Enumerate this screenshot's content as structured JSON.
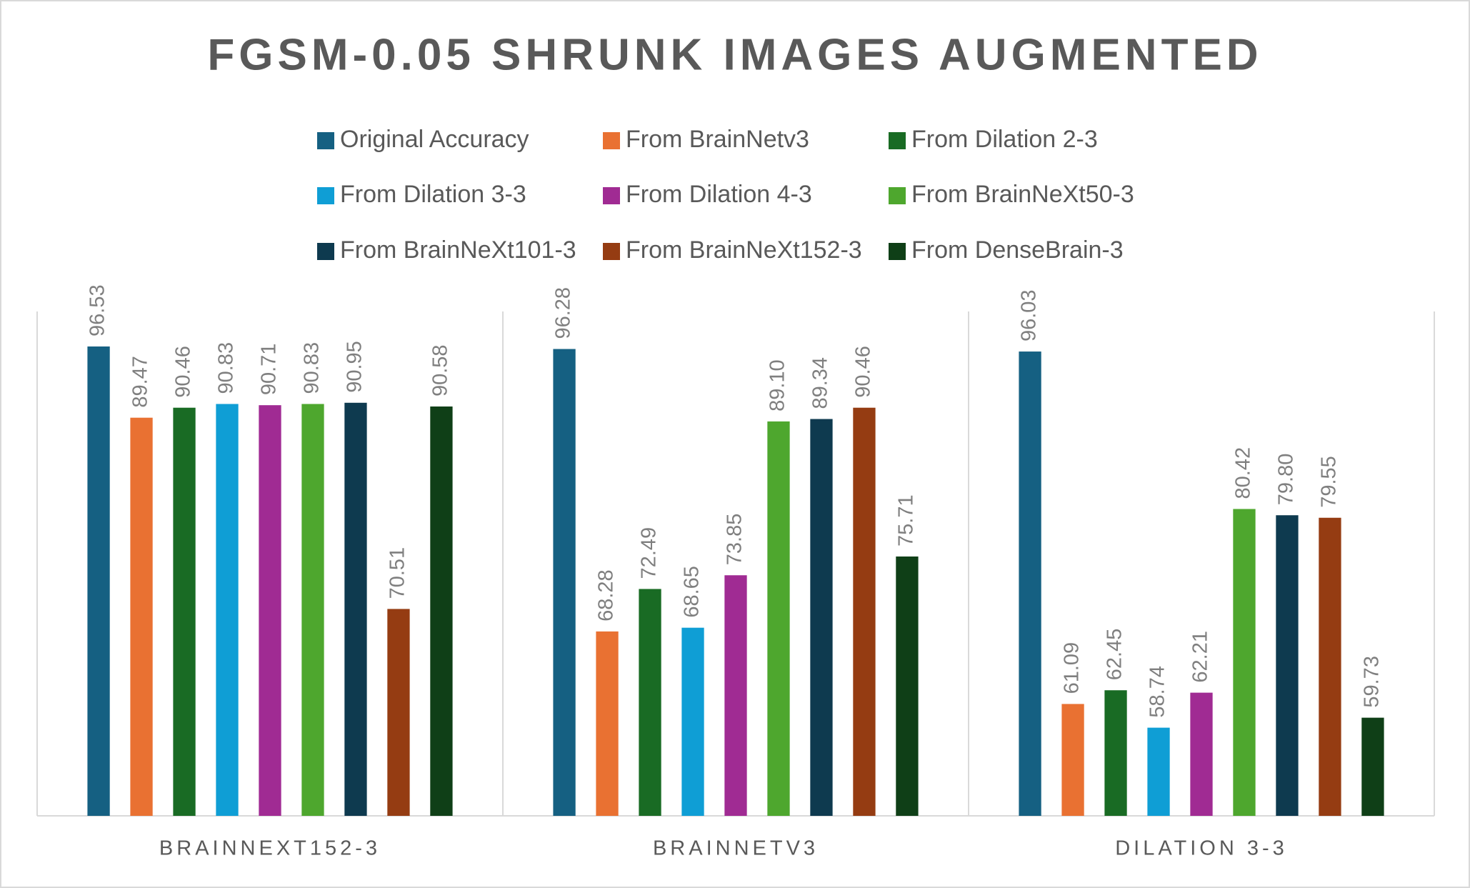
{
  "chart_data": {
    "type": "bar",
    "title": "FGSM-0.05 SHRUNK IMAGES AUGMENTED",
    "categories": [
      "BRAINNEXT152-3",
      "BRAINNETV3",
      "DILATION 3-3"
    ],
    "ylim": [
      50,
      100
    ],
    "legend": "top",
    "series": [
      {
        "name": "Original Accuracy",
        "color": "#156082",
        "values": [
          96.53,
          96.28,
          96.03
        ],
        "value_labels": [
          "96.53",
          "96.28",
          "96.03"
        ]
      },
      {
        "name": "From BrainNetv3",
        "color": "#E97132",
        "values": [
          89.47,
          68.28,
          61.09
        ],
        "value_labels": [
          "89.47",
          "68.28",
          "61.09"
        ]
      },
      {
        "name": "From Dilation 2-3",
        "color": "#196B24",
        "values": [
          90.46,
          72.49,
          62.45
        ],
        "value_labels": [
          "90.46",
          "72.49",
          "62.45"
        ]
      },
      {
        "name": "From Dilation 3-3",
        "color": "#0F9ED5",
        "values": [
          90.83,
          68.65,
          58.74
        ],
        "value_labels": [
          "90.83",
          "68.65",
          "58.74"
        ]
      },
      {
        "name": "From Dilation 4-3",
        "color": "#A02B93",
        "values": [
          90.71,
          73.85,
          62.21
        ],
        "value_labels": [
          "90.71",
          "73.85",
          "62.21"
        ]
      },
      {
        "name": "From BrainNeXt50-3",
        "color": "#4EA72E",
        "values": [
          90.83,
          89.1,
          80.42
        ],
        "value_labels": [
          "90.83",
          "89.10",
          "80.42"
        ]
      },
      {
        "name": "From BrainNeXt101-3",
        "color": "#0E3A4F",
        "values": [
          90.95,
          89.34,
          79.8
        ],
        "value_labels": [
          "90.95",
          "89.34",
          "79.80"
        ]
      },
      {
        "name": "From BrainNeXt152-3",
        "color": "#953C12",
        "values": [
          70.51,
          90.46,
          79.55
        ],
        "value_labels": [
          "70.51",
          "90.46",
          "79.55"
        ]
      },
      {
        "name": "From DenseBrain-3",
        "color": "#0F3F17",
        "values": [
          90.58,
          75.71,
          59.73
        ],
        "value_labels": [
          "90.58",
          "75.71",
          "59.73"
        ]
      }
    ]
  }
}
